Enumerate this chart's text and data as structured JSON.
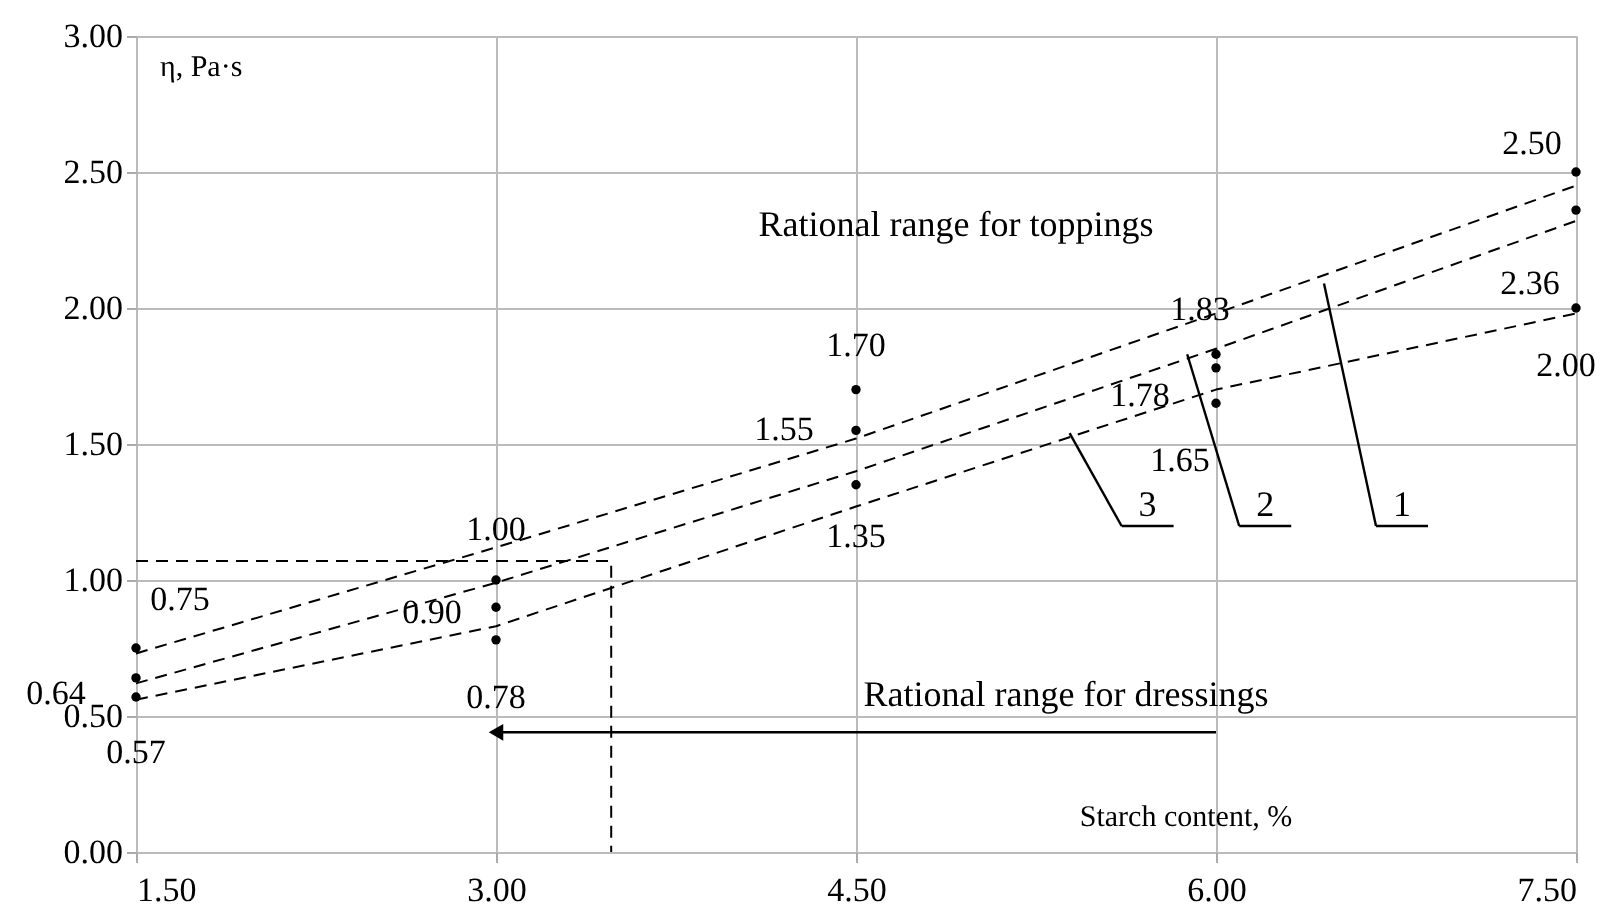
{
  "chart_data": {
    "type": "scatter",
    "xlabel": "Starch content, %",
    "ylabel": "η, Pa·s",
    "x": [
      1.5,
      1.5,
      1.5,
      3.0,
      3.0,
      3.0,
      4.5,
      4.5,
      4.5,
      6.0,
      6.0,
      6.0,
      7.5,
      7.5,
      7.5
    ],
    "series": [
      {
        "color": "#000000",
        "values": [
          0.75,
          0.64,
          0.57,
          1.0,
          0.9,
          0.78,
          1.7,
          1.55,
          1.35,
          1.83,
          1.78,
          1.65,
          2.5,
          2.36,
          2.0
        ],
        "value_labels": [
          "0.75",
          "0.64",
          "0.57",
          "1.00",
          "0.90",
          "0.78",
          "1.70",
          "1.55",
          "1.35",
          "1.83",
          "1.78",
          "1.65",
          "2.50",
          "2.36",
          "2.00"
        ]
      },
      {
        "type": "line",
        "color": "#000000",
        "line_style": "dashed",
        "x": [
          1.5,
          3.0,
          4.5,
          6.0,
          7.5
        ],
        "values": [
          0.73,
          1.12,
          1.52,
          1.98,
          2.45
        ]
      },
      {
        "type": "line",
        "color": "#000000",
        "line_style": "dashed",
        "x": [
          1.5,
          3.0,
          4.5,
          6.0,
          7.5
        ],
        "values": [
          0.62,
          0.99,
          1.4,
          1.85,
          2.32
        ]
      },
      {
        "type": "line",
        "color": "#000000",
        "line_style": "dashed",
        "x": [
          1.5,
          3.0,
          4.5,
          6.0,
          7.5
        ],
        "values": [
          0.56,
          0.83,
          1.27,
          1.7,
          1.98
        ]
      },
      {
        "type": "line",
        "color": "#000000",
        "line_style": "dashed",
        "x": [
          1.5,
          3.48,
          3.48
        ],
        "values": [
          1.07,
          1.07,
          0
        ]
      },
      {
        "type": "line",
        "color": "#000000",
        "line_style": "solid",
        "marker": "triangle",
        "x": [
          6.0,
          3.0
        ],
        "values": [
          0.44,
          0.44
        ]
      }
    ],
    "annotations": [
      "Rational range for toppings",
      "Rational range for dressings",
      {
        "text": "1",
        "x": 6.45,
        "y": 2.09
      },
      {
        "text": "2",
        "x": 5.88,
        "y": 1.83
      },
      {
        "text": "3",
        "x": 5.39,
        "y": 1.54
      }
    ],
    "xlim": [
      1.5,
      7.5
    ],
    "xticks": [
      {
        "value": 1.5,
        "label": "1.50"
      },
      {
        "value": 3.0,
        "label": "3.00"
      },
      {
        "value": 4.5,
        "label": "4.50"
      },
      {
        "value": 6.0,
        "label": "6.00"
      },
      {
        "value": 7.5,
        "label": "7.50"
      }
    ],
    "ylim": [
      0,
      3
    ],
    "yticks": [
      {
        "value": 0,
        "label": "0.00"
      },
      {
        "value": 0.5,
        "label": "0.50"
      },
      {
        "value": 1.0,
        "label": "1.00"
      },
      {
        "value": 1.5,
        "label": "1.50"
      },
      {
        "value": 2.0,
        "label": "2.00"
      },
      {
        "value": 2.5,
        "label": "2.50"
      },
      {
        "value": 3.0,
        "label": "3.00"
      }
    ],
    "grid": true
  }
}
